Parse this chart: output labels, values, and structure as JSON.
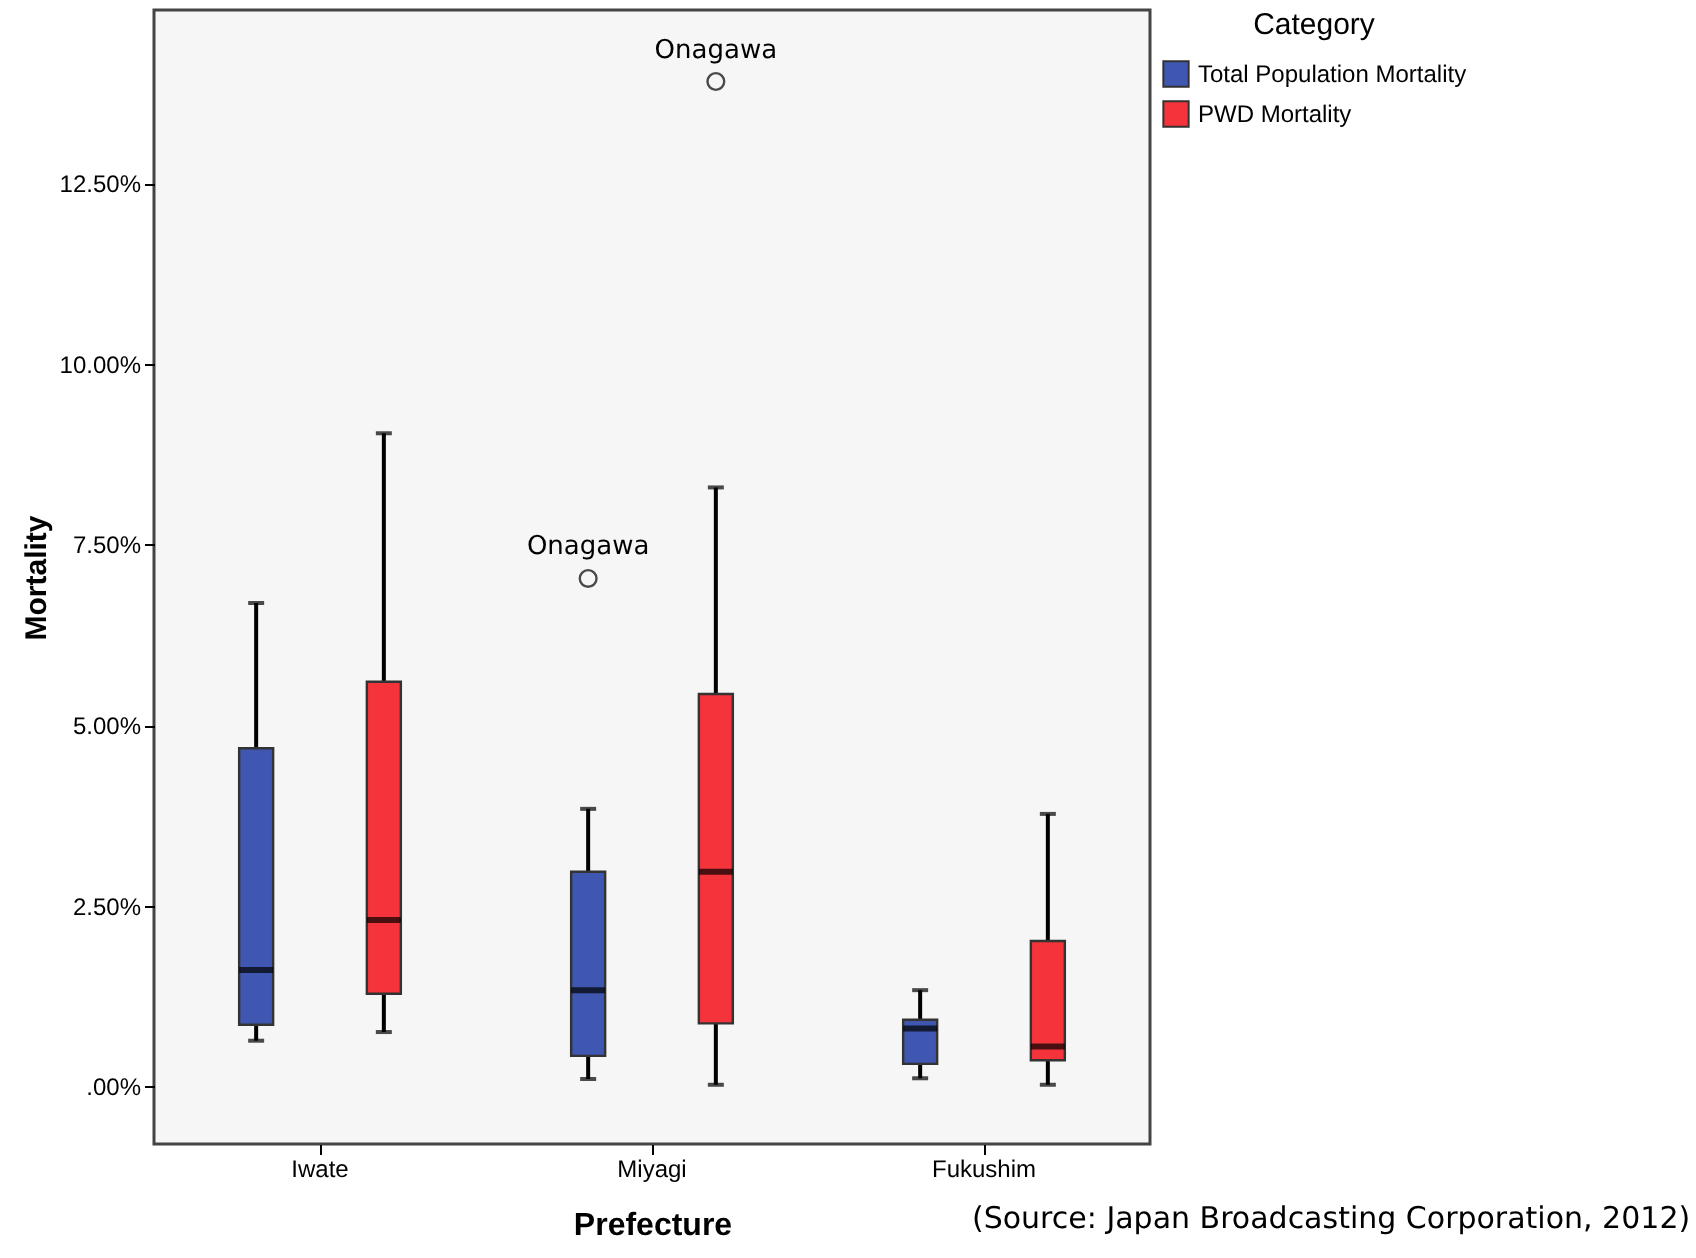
{
  "chart_data": {
    "type": "box",
    "xlabel": "Prefecture",
    "ylabel": "Mortality",
    "legend_title": "Category",
    "legend": "top right",
    "categories": [
      "Iwate",
      "Miyagi",
      "Fukushim"
    ],
    "ylim": [
      -0.8,
      14.9
    ],
    "yticks": [
      {
        "value": 0,
        "label": ".00%"
      },
      {
        "value": 2.5,
        "label": "2.50%"
      },
      {
        "value": 5,
        "label": "5.00%"
      },
      {
        "value": 7.5,
        "label": "7.50%"
      },
      {
        "value": 10,
        "label": "10.00%"
      },
      {
        "value": 12.5,
        "label": "12.50%"
      }
    ],
    "series": [
      {
        "name": "Total Population Mortality",
        "color": "#3f57b0",
        "boxes": [
          {
            "low": 0.63,
            "q1": 0.85,
            "median": 1.61,
            "q3": 4.68,
            "high": 6.69
          },
          {
            "low": 0.1,
            "q1": 0.42,
            "median": 1.33,
            "q3": 2.97,
            "high": 3.84,
            "outliers": [
              7.03
            ]
          },
          {
            "low": 0.11,
            "q1": 0.31,
            "median": 0.8,
            "q3": 0.92,
            "high": 1.33
          }
        ]
      },
      {
        "name": "PWD Mortality",
        "color": "#f5333b",
        "boxes": [
          {
            "low": 0.75,
            "q1": 1.28,
            "median": 2.3,
            "q3": 5.6,
            "high": 9.04
          },
          {
            "low": 0.02,
            "q1": 0.87,
            "median": 2.97,
            "q3": 5.43,
            "high": 8.29,
            "outliers": [
              13.91
            ]
          },
          {
            "low": 0.02,
            "q1": 0.36,
            "median": 0.55,
            "q3": 2.01,
            "high": 3.77
          }
        ]
      }
    ],
    "annotations": [
      "Onagawa",
      "Onagawa",
      "(Source: Japan Broadcasting Corporation, 2012)"
    ]
  }
}
